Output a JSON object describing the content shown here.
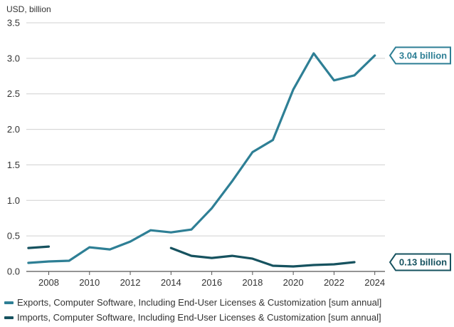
{
  "chart_data": {
    "type": "line",
    "ylabel": "USD, billion",
    "x_ticks": [
      2008,
      2010,
      2012,
      2014,
      2016,
      2018,
      2020,
      2022,
      2024
    ],
    "xlim": [
      2006.9,
      2024.5
    ],
    "ylim": [
      0,
      3.5
    ],
    "y_ticks": [
      "0.0",
      "0.5",
      "1.0",
      "1.5",
      "2.0",
      "2.5",
      "3.0",
      "3.5"
    ],
    "grid": true,
    "legend_position": "bottom",
    "series": [
      {
        "name": "Exports, Computer Software, Including End-User Licenses & Customization [sum annual]",
        "color": "#2e7f95",
        "points": [
          [
            2007,
            0.12
          ],
          [
            2008,
            0.14
          ],
          [
            2009,
            0.15
          ],
          [
            2010,
            0.34
          ],
          [
            2011,
            0.31
          ],
          [
            2012,
            0.42
          ],
          [
            2013,
            0.58
          ],
          [
            2014,
            0.55
          ],
          [
            2015,
            0.59
          ],
          [
            2016,
            0.89
          ],
          [
            2017,
            1.27
          ],
          [
            2018,
            1.68
          ],
          [
            2019,
            1.85
          ],
          [
            2020,
            2.56
          ],
          [
            2021,
            3.07
          ],
          [
            2022,
            2.69
          ],
          [
            2023,
            2.76
          ],
          [
            2024,
            3.04
          ]
        ],
        "callout": "3.04 billion"
      },
      {
        "name": "Imports, Computer Software, Including End-User Licenses & Customization [sum annual]",
        "color": "#16525f",
        "segments": [
          [
            [
              2007,
              0.33
            ],
            [
              2008,
              0.35
            ]
          ],
          [
            [
              2014,
              0.33
            ],
            [
              2015,
              0.22
            ],
            [
              2016,
              0.19
            ],
            [
              2017,
              0.22
            ],
            [
              2018,
              0.18
            ],
            [
              2019,
              0.08
            ],
            [
              2020,
              0.07
            ],
            [
              2021,
              0.09
            ],
            [
              2022,
              0.1
            ],
            [
              2023,
              0.13
            ]
          ]
        ],
        "callout": "0.13 billion"
      }
    ]
  }
}
